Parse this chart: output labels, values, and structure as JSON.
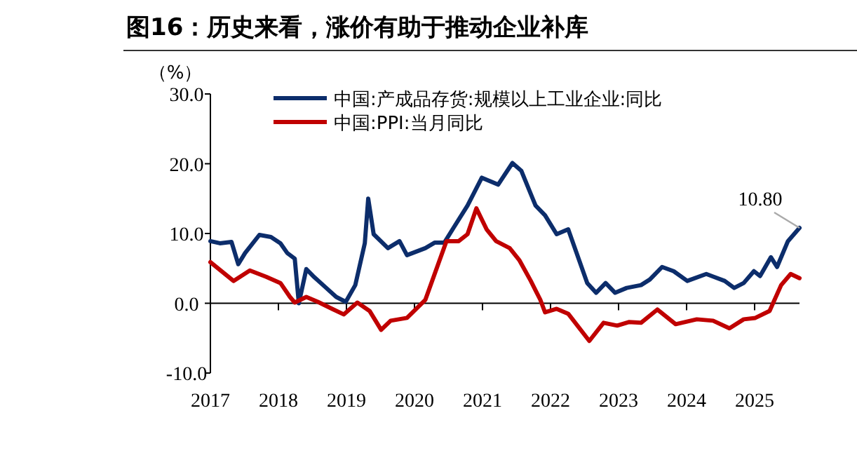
{
  "chart_data": {
    "type": "line",
    "title": "图16：历史来看，涨价有助于推动企业补库",
    "ylabel": "（%）",
    "xlim": [
      2017,
      2025.66
    ],
    "xticks": [
      2017,
      2018,
      2019,
      2020,
      2021,
      2022,
      2023,
      2024,
      2025
    ],
    "ylim": [
      -10,
      30
    ],
    "yticks": [
      {
        "value": -10,
        "label": "-10.0"
      },
      {
        "value": 0,
        "label": "0.0"
      },
      {
        "value": 10,
        "label": "10.0"
      },
      {
        "value": 20,
        "label": "20.0"
      },
      {
        "value": 30,
        "label": "30.0"
      }
    ],
    "legend": "top",
    "marker": "none",
    "line_style": "solid",
    "annotations": [
      {
        "text": "10.80",
        "x": 2025.66,
        "y": 10.8
      }
    ],
    "series": [
      {
        "name": "中国:产成品存货:规模以上工业企业:同比",
        "color": "#0c2d6b",
        "x": [
          2017,
          2017.14,
          2017.31,
          2017.41,
          2017.51,
          2017.72,
          2017.89,
          2018.03,
          2018.13,
          2018.24,
          2018.3,
          2018.41,
          2018.51,
          2018.68,
          2018.85,
          2018.99,
          2019.13,
          2019.27,
          2019.32,
          2019.4,
          2019.61,
          2019.78,
          2019.89,
          2020.16,
          2020.3,
          2020.44,
          2020.58,
          2020.78,
          2020.99,
          2021.23,
          2021.44,
          2021.57,
          2021.78,
          2021.92,
          2022.09,
          2022.26,
          2022.54,
          2022.67,
          2022.81,
          2022.95,
          2023.12,
          2023.33,
          2023.46,
          2023.64,
          2023.81,
          2024.01,
          2024.29,
          2024.56,
          2024.7,
          2024.84,
          2024.99,
          2025.08,
          2025.24,
          2025.33,
          2025.49,
          2025.66
        ],
        "values": [
          8.9,
          8.6,
          8.8,
          5.6,
          7.2,
          9.8,
          9.5,
          8.6,
          7.2,
          6.4,
          0.0,
          4.9,
          3.9,
          2.4,
          0.9,
          0.2,
          2.6,
          8.6,
          15.0,
          9.9,
          7.9,
          8.9,
          6.9,
          7.9,
          8.7,
          8.7,
          10.9,
          14.0,
          18.0,
          17.0,
          20.1,
          19.0,
          14.0,
          12.6,
          9.9,
          10.6,
          2.9,
          1.5,
          2.9,
          1.5,
          2.2,
          2.6,
          3.4,
          5.2,
          4.6,
          3.2,
          4.2,
          3.2,
          2.2,
          2.9,
          4.6,
          3.9,
          6.6,
          5.2,
          8.9,
          10.8
        ]
      },
      {
        "name": "中国:PPI:当月同比",
        "color": "#c00000",
        "x": [
          2017,
          2017.34,
          2017.58,
          2017.82,
          2018.03,
          2018.17,
          2018.24,
          2018.41,
          2018.58,
          2018.79,
          2018.96,
          2019.16,
          2019.34,
          2019.51,
          2019.65,
          2019.89,
          2020.16,
          2020.47,
          2020.65,
          2020.78,
          2020.91,
          2021.06,
          2021.2,
          2021.4,
          2021.54,
          2021.71,
          2021.85,
          2021.92,
          2022.09,
          2022.26,
          2022.57,
          2022.78,
          2022.98,
          2023.15,
          2023.33,
          2023.57,
          2023.84,
          2024.15,
          2024.39,
          2024.63,
          2024.84,
          2025.01,
          2025.22,
          2025.39,
          2025.53,
          2025.66
        ],
        "values": [
          5.9,
          3.2,
          4.7,
          3.8,
          2.9,
          0.9,
          0.1,
          0.9,
          0.2,
          -0.8,
          -1.6,
          0.1,
          -1.1,
          -3.8,
          -2.5,
          -2.1,
          0.5,
          8.9,
          8.9,
          9.9,
          13.6,
          10.6,
          8.9,
          7.9,
          6.2,
          3.2,
          0.5,
          -1.3,
          -0.8,
          -1.5,
          -5.4,
          -2.8,
          -3.2,
          -2.7,
          -2.8,
          -0.9,
          -3.0,
          -2.3,
          -2.5,
          -3.6,
          -2.3,
          -2.1,
          -1.1,
          2.6,
          4.2,
          3.6
        ]
      }
    ]
  }
}
